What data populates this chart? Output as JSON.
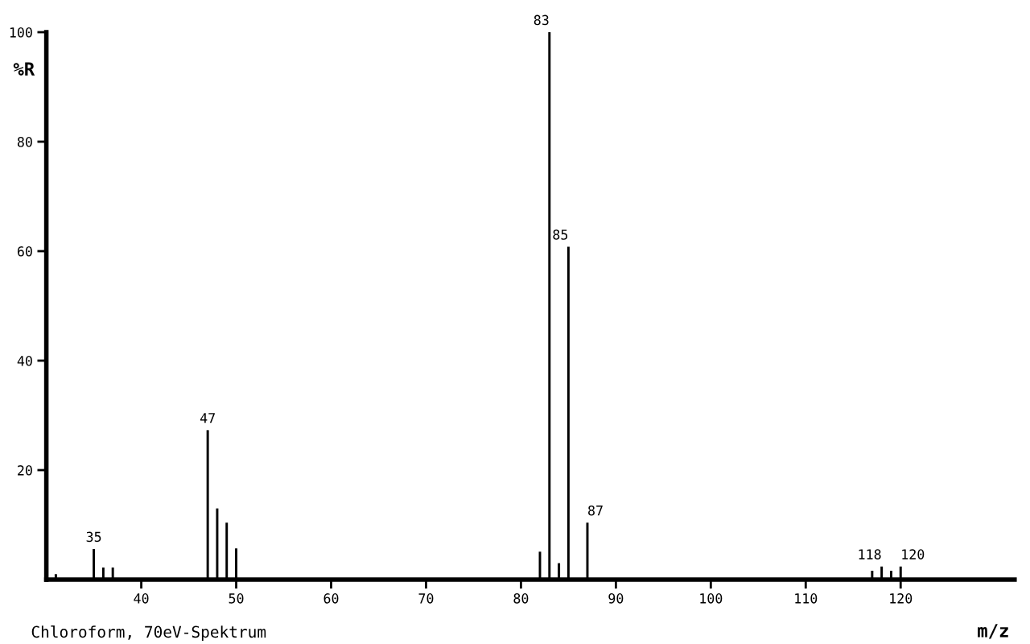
{
  "chart_data": {
    "type": "bar",
    "ylabel": "%R",
    "xlabel": "m/z",
    "x": [
      31,
      35,
      36,
      37,
      47,
      48,
      49,
      50,
      82,
      83,
      84,
      85,
      87,
      117,
      118,
      119,
      120
    ],
    "values": [
      1,
      5.6,
      2.2,
      2.2,
      27.3,
      13,
      10.4,
      5.7,
      5.1,
      100,
      3,
      60.8,
      10.4,
      1.6,
      2.4,
      1.6,
      2.4
    ],
    "color": "#000000",
    "xlim": [
      30,
      132
    ],
    "xticks": [
      40,
      50,
      60,
      70,
      80,
      90,
      100,
      110,
      120
    ],
    "ylim": [
      0,
      100
    ],
    "yticks": [
      20,
      40,
      60,
      80,
      100
    ],
    "grid": false,
    "legend": false,
    "annotations": [
      {
        "text": "35",
        "x": 35,
        "y": 5.6
      },
      {
        "text": "47",
        "x": 47,
        "y": 27.3
      },
      {
        "text": "83",
        "x": 83,
        "y": 100
      },
      {
        "text": "85",
        "x": 85,
        "y": 60.8
      },
      {
        "text": "87",
        "x": 87,
        "y": 10.4
      },
      {
        "text": "118",
        "x": 118,
        "y": 2.4
      },
      {
        "text": "120",
        "x": 120,
        "y": 2.4
      },
      "Chloroform, 70eV-Spektrum"
    ]
  }
}
